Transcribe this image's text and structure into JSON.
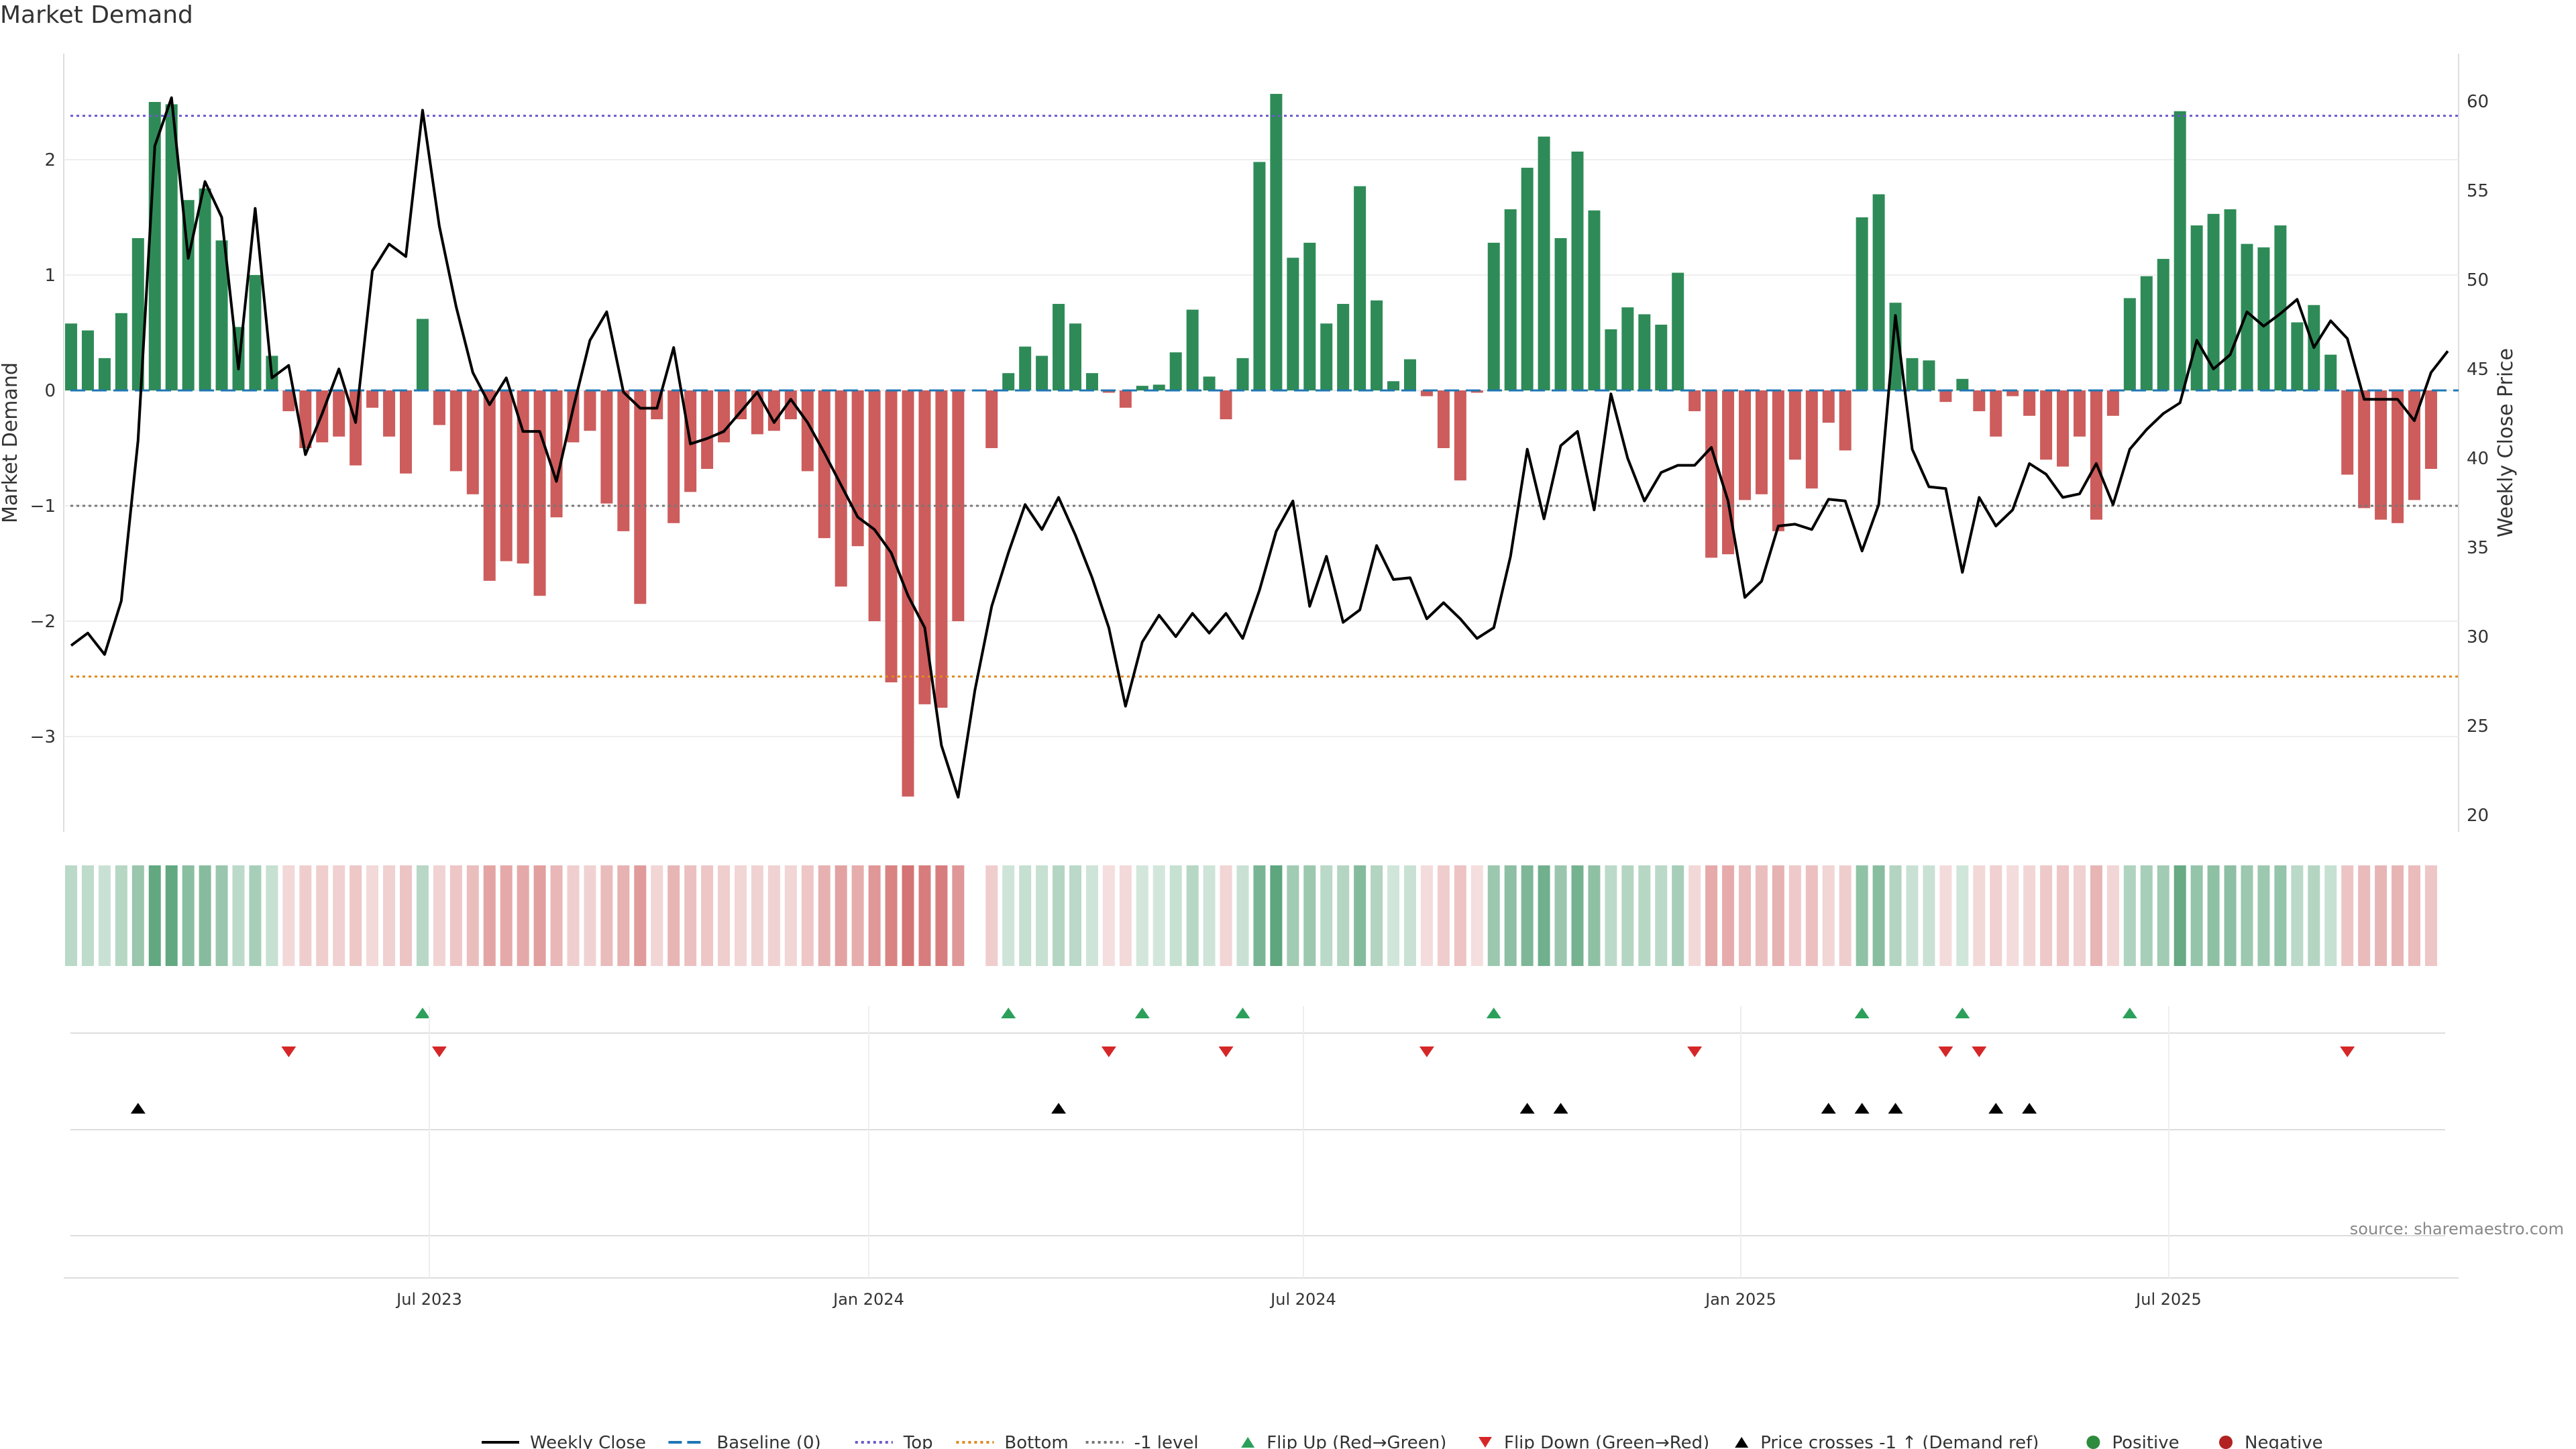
{
  "chart_data": {
    "type": "bar+line",
    "title": "Market Demand",
    "ylabel_left": "Market Demand",
    "ylabel_right": "Weekly Close Price",
    "source": "source: sharemaestro.com",
    "y_left_ticks": [
      "−3",
      "−2",
      "−1",
      "0",
      "1",
      "2"
    ],
    "y_right_ticks": [
      "20",
      "25",
      "30",
      "35",
      "40",
      "45",
      "50",
      "55",
      "60"
    ],
    "x_ticks": [
      "Jul 2023",
      "Jan 2024",
      "Jul 2024",
      "Jan 2025",
      "Jul 2025"
    ],
    "levels": {
      "top": 2.38,
      "bottom": -2.48,
      "minus_one": -1,
      "baseline": 0
    },
    "demand": [
      0.58,
      0.52,
      0.28,
      0.67,
      1.32,
      2.5,
      2.48,
      1.65,
      1.75,
      1.3,
      0.55,
      1.0,
      0.3,
      -0.18,
      -0.5,
      -0.45,
      -0.4,
      -0.65,
      -0.15,
      -0.4,
      -0.72,
      0.62,
      -0.3,
      -0.7,
      -0.9,
      -1.65,
      -1.48,
      -1.5,
      -1.78,
      -1.1,
      -0.45,
      -0.35,
      -0.98,
      -1.22,
      -1.85,
      -0.25,
      -1.15,
      -0.88,
      -0.68,
      -0.45,
      -0.25,
      -0.38,
      -0.35,
      -0.25,
      -0.7,
      -1.28,
      -1.7,
      -1.35,
      -2.0,
      -2.53,
      -3.52,
      -2.72,
      -2.75,
      -2.0,
      null,
      -0.5,
      0.15,
      0.38,
      0.3,
      0.75,
      0.58,
      0.15,
      -0.02,
      -0.15,
      0.04,
      0.05,
      0.33,
      0.7,
      0.12,
      -0.25,
      0.28,
      1.98,
      2.57,
      1.15,
      1.28,
      0.58,
      0.75,
      1.77,
      0.78,
      0.08,
      0.27,
      -0.05,
      -0.5,
      -0.78,
      -0.02,
      1.28,
      1.57,
      1.93,
      2.2,
      1.32,
      2.07,
      1.56,
      0.53,
      0.72,
      0.66,
      0.57,
      1.02,
      -0.18,
      -1.45,
      -1.42,
      -0.95,
      -0.9,
      -1.22,
      -0.6,
      -0.85,
      -0.28,
      -0.52,
      1.5,
      1.7,
      0.76,
      0.28,
      0.26,
      -0.1,
      0.1,
      -0.18,
      -0.4,
      -0.05,
      -0.22,
      -0.6,
      -0.66,
      -0.4,
      -1.12,
      -0.22,
      0.8,
      0.99,
      1.14,
      2.42,
      1.43,
      1.53,
      1.57,
      1.27,
      1.24,
      1.43,
      0.59,
      0.74,
      0.31,
      -0.73,
      -1.02,
      -1.12,
      -1.15,
      -0.95,
      -0.68
    ],
    "weekly_close": [
      29.5,
      30.2,
      29,
      32,
      41,
      57.5,
      60.2,
      51.2,
      55.5,
      53.5,
      45,
      54,
      44.5,
      45.2,
      40.2,
      42.5,
      45,
      42,
      50.5,
      52,
      51.3,
      59.5,
      53,
      48.5,
      44.8,
      43,
      44.5,
      41.5,
      41.5,
      38.7,
      42.8,
      46.6,
      48.2,
      43.7,
      42.8,
      42.8,
      46.2,
      40.8,
      41.1,
      41.5,
      42.6,
      43.7,
      42,
      43.3,
      42,
      40.3,
      38.5,
      36.7,
      36,
      34.7,
      32.3,
      30.5,
      23.9,
      21,
      27,
      31.7,
      34.7,
      37.4,
      36,
      37.8,
      35.7,
      33.3,
      30.5,
      26.1,
      29.7,
      31.2,
      30,
      31.3,
      30.2,
      31.3,
      29.9,
      32.6,
      35.9,
      37.6,
      31.7,
      34.5,
      30.8,
      31.5,
      35.1,
      33.2,
      33.3,
      31,
      31.9,
      31,
      29.9,
      30.5,
      34.5,
      40.5,
      36.6,
      40.7,
      41.5,
      37.1,
      43.6,
      40,
      37.6,
      39.2,
      39.6,
      39.6,
      40.6,
      37.6,
      32.2,
      33.1,
      36.2,
      36.3,
      36,
      37.7,
      37.6,
      34.8,
      37.4,
      48,
      40.5,
      38.4,
      38.3,
      33.6,
      37.8,
      36.2,
      37.1,
      39.7,
      39.1,
      37.8,
      38,
      39.7,
      37.4,
      40.5,
      41.6,
      42.5,
      43.1,
      46.6,
      45,
      45.8,
      48.2,
      47.4,
      48.1,
      48.9,
      46.2,
      47.7,
      46.7,
      43.3,
      43.3,
      43.3,
      42.1,
      44.8,
      46
    ]
  },
  "legend": [
    {
      "label": "Weekly Close",
      "kind": "line",
      "color": "#000000"
    },
    {
      "label": "Baseline (0)",
      "kind": "dash",
      "color": "#1f77b4"
    },
    {
      "label": "Top",
      "kind": "dot",
      "color": "#6a5acd"
    },
    {
      "label": "Bottom",
      "kind": "dot",
      "color": "#e08a1e"
    },
    {
      "label": "-1 level",
      "kind": "dot",
      "color": "#777777"
    },
    {
      "label": "Flip Up (Red→Green)",
      "kind": "tri-up",
      "color": "#2ca05a"
    },
    {
      "label": "Flip Down (Green→Red)",
      "kind": "tri-down",
      "color": "#d62728"
    },
    {
      "label": "Price crosses -1 ↑ (Demand ref)",
      "kind": "tri-up",
      "color": "#000000"
    },
    {
      "label": "Positive",
      "kind": "circle",
      "color": "#2e8b3d"
    },
    {
      "label": "Negative",
      "kind": "circle",
      "color": "#b22222"
    }
  ],
  "colors": {
    "positive": "#2e8b57",
    "negative": "#cd5c5c",
    "line": "#000000"
  }
}
